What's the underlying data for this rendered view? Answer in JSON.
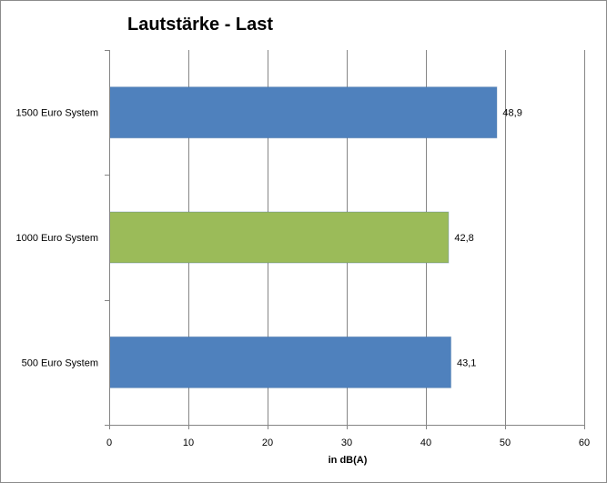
{
  "chart_data": {
    "type": "bar",
    "orientation": "horizontal",
    "title": "Lautstärke - Last",
    "xlabel": "in dB(A)",
    "ylabel": "",
    "categories": [
      "1500 Euro System",
      "1000 Euro System",
      "500 Euro System"
    ],
    "values": [
      48.9,
      42.8,
      43.1
    ],
    "value_labels": [
      "48,9",
      "42,8",
      "43,1"
    ],
    "bar_colors": [
      "#4F81BD",
      "#9BBB59",
      "#4F81BD"
    ],
    "xlim": [
      0,
      60
    ],
    "xticks": [
      0,
      10,
      20,
      30,
      40,
      50,
      60
    ],
    "xtick_labels": [
      "0",
      "10",
      "20",
      "30",
      "40",
      "50",
      "60"
    ],
    "grid": "vertical",
    "legend": "none"
  }
}
